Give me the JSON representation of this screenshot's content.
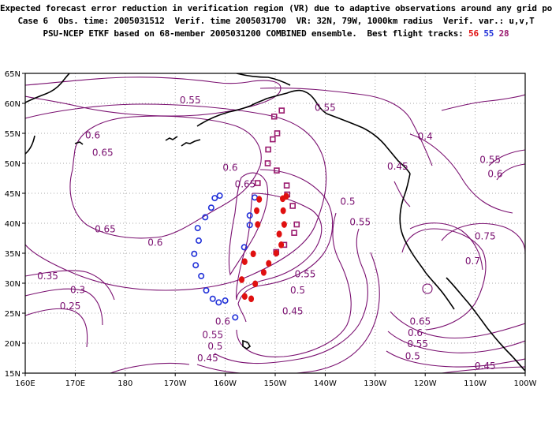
{
  "header": {
    "line1": "Expected forecast error reduction in verification region (VR) due to adaptive observations around any grid point.",
    "line2": "Case 6  Obs. time: 2005031512  Verif. time 2005031700  VR: 32N, 79W, 1000km radius  Verif. var.: u,v,T",
    "line3_prefix": "PSU-NCEP ETKF based on 68-member 2005031200 COMBINED ensemble.  Best flight tracks: ",
    "track_labels": [
      "56",
      "55",
      "28"
    ]
  },
  "colors": {
    "contour": "#7a1070",
    "coast": "#000000",
    "track_56": "#e01010",
    "track_55": "#2030d8",
    "track_28": "#9a1a6e"
  },
  "axes": {
    "lon_labels": [
      "160E",
      "170E",
      "180",
      "170W",
      "160W",
      "150W",
      "140W",
      "130W",
      "120W",
      "110W",
      "100W"
    ],
    "lat_labels": [
      "65N",
      "60N",
      "55N",
      "50N",
      "45N",
      "40N",
      "35N",
      "30N",
      "25N",
      "20N",
      "15N"
    ],
    "lon_range": [
      160,
      260
    ],
    "lat_range": [
      15,
      65
    ]
  },
  "contour_labels": [
    {
      "text": "0.55",
      "lon": 193,
      "lat": 60.5
    },
    {
      "text": "0.55",
      "lon": 220,
      "lat": 59.3
    },
    {
      "text": "0.4",
      "lon": 240,
      "lat": 54.5
    },
    {
      "text": "0.6",
      "lon": 173.5,
      "lat": 54.7
    },
    {
      "text": "0.65",
      "lon": 175.5,
      "lat": 51.8
    },
    {
      "text": "0.6",
      "lon": 201,
      "lat": 49.3
    },
    {
      "text": "0.65",
      "lon": 204,
      "lat": 46.5
    },
    {
      "text": "0.45",
      "lon": 234.5,
      "lat": 49.5
    },
    {
      "text": "0.55",
      "lon": 253,
      "lat": 50.6
    },
    {
      "text": "0.6",
      "lon": 254,
      "lat": 48.2
    },
    {
      "text": "0.5",
      "lon": 224.5,
      "lat": 43.6
    },
    {
      "text": "0.55",
      "lon": 227,
      "lat": 40.2
    },
    {
      "text": "0.65",
      "lon": 176,
      "lat": 39.0
    },
    {
      "text": "0.6",
      "lon": 186,
      "lat": 36.8
    },
    {
      "text": "0.75",
      "lon": 252,
      "lat": 37.8
    },
    {
      "text": "0.7",
      "lon": 249.5,
      "lat": 33.7
    },
    {
      "text": "0.35",
      "lon": 164.5,
      "lat": 31.2
    },
    {
      "text": "0.3",
      "lon": 170.5,
      "lat": 28.9
    },
    {
      "text": "0.25",
      "lon": 169,
      "lat": 26.2
    },
    {
      "text": "0.55",
      "lon": 216,
      "lat": 31.5
    },
    {
      "text": "0.5",
      "lon": 214.5,
      "lat": 28.8
    },
    {
      "text": "0.45",
      "lon": 213.5,
      "lat": 25.3
    },
    {
      "text": "0.6",
      "lon": 199.5,
      "lat": 23.6
    },
    {
      "text": "0.55",
      "lon": 197.5,
      "lat": 21.4
    },
    {
      "text": "0.5",
      "lon": 198,
      "lat": 19.5
    },
    {
      "text": "0.45",
      "lon": 196.5,
      "lat": 17.5
    },
    {
      "text": "0.65",
      "lon": 239,
      "lat": 23.6
    },
    {
      "text": "0.6",
      "lon": 238,
      "lat": 21.7
    },
    {
      "text": "0.55",
      "lon": 238.5,
      "lat": 19.9
    },
    {
      "text": "0.5",
      "lon": 237.5,
      "lat": 17.8
    },
    {
      "text": "0.45",
      "lon": 252,
      "lat": 16.2
    }
  ],
  "tracks": {
    "56": [
      {
        "lon": 211.5,
        "lat": 44.1
      },
      {
        "lon": 212.2,
        "lat": 44.5
      },
      {
        "lon": 211.6,
        "lat": 42.1
      },
      {
        "lon": 211.8,
        "lat": 39.8
      },
      {
        "lon": 210.8,
        "lat": 38.2
      },
      {
        "lon": 211.2,
        "lat": 36.4
      },
      {
        "lon": 210.2,
        "lat": 35.0
      },
      {
        "lon": 208.7,
        "lat": 33.3
      },
      {
        "lon": 207.7,
        "lat": 31.8
      },
      {
        "lon": 206.0,
        "lat": 29.9
      },
      {
        "lon": 205.2,
        "lat": 27.4
      },
      {
        "lon": 203.9,
        "lat": 27.8
      },
      {
        "lon": 203.3,
        "lat": 30.6
      },
      {
        "lon": 203.9,
        "lat": 33.6
      },
      {
        "lon": 205.6,
        "lat": 34.9
      },
      {
        "lon": 206.5,
        "lat": 39.8
      },
      {
        "lon": 206.3,
        "lat": 42.1
      },
      {
        "lon": 206.8,
        "lat": 44.0
      }
    ],
    "55": [
      {
        "lon": 197.9,
        "lat": 44.2
      },
      {
        "lon": 198.9,
        "lat": 44.6
      },
      {
        "lon": 197.2,
        "lat": 42.6
      },
      {
        "lon": 196.0,
        "lat": 41.0
      },
      {
        "lon": 194.5,
        "lat": 39.2
      },
      {
        "lon": 194.7,
        "lat": 37.1
      },
      {
        "lon": 193.8,
        "lat": 34.9
      },
      {
        "lon": 194.1,
        "lat": 33.0
      },
      {
        "lon": 195.2,
        "lat": 31.2
      },
      {
        "lon": 196.2,
        "lat": 28.8
      },
      {
        "lon": 197.5,
        "lat": 27.4
      },
      {
        "lon": 198.7,
        "lat": 26.8
      },
      {
        "lon": 200.0,
        "lat": 27.1
      },
      {
        "lon": 202.0,
        "lat": 24.3
      },
      {
        "lon": 203.8,
        "lat": 36.0
      },
      {
        "lon": 204.9,
        "lat": 39.7
      },
      {
        "lon": 204.9,
        "lat": 41.3
      },
      {
        "lon": 205.9,
        "lat": 44.3
      }
    ],
    "28": [
      {
        "lon": 211.3,
        "lat": 58.8
      },
      {
        "lon": 209.8,
        "lat": 57.8
      },
      {
        "lon": 210.4,
        "lat": 55.0
      },
      {
        "lon": 209.5,
        "lat": 54.0
      },
      {
        "lon": 208.6,
        "lat": 52.3
      },
      {
        "lon": 208.5,
        "lat": 50.0
      },
      {
        "lon": 210.3,
        "lat": 48.8
      },
      {
        "lon": 212.3,
        "lat": 46.3
      },
      {
        "lon": 206.5,
        "lat": 46.7
      },
      {
        "lon": 212.4,
        "lat": 44.8
      },
      {
        "lon": 213.5,
        "lat": 42.9
      },
      {
        "lon": 214.3,
        "lat": 39.8
      },
      {
        "lon": 213.8,
        "lat": 38.4
      },
      {
        "lon": 211.8,
        "lat": 36.4
      },
      {
        "lon": 210.2,
        "lat": 35.2
      }
    ]
  }
}
